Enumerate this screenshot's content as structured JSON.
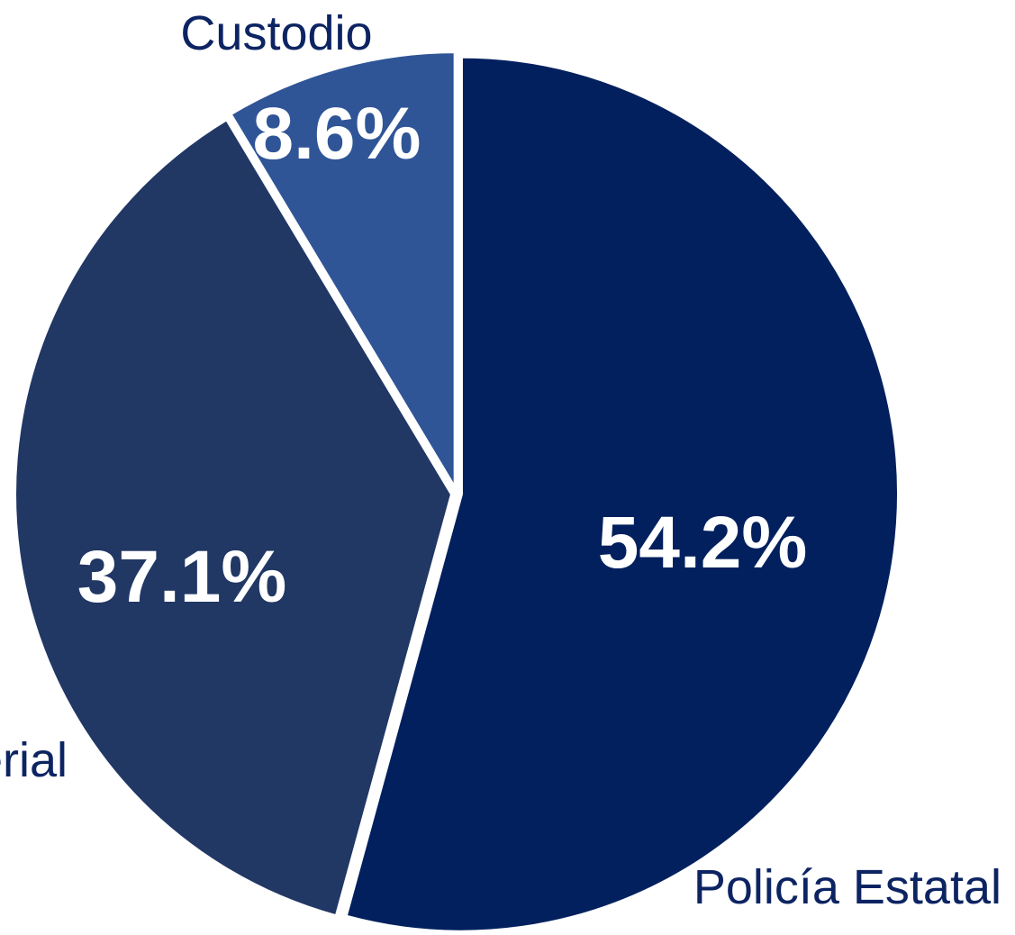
{
  "chart_data": {
    "type": "pie",
    "title": "",
    "start_angle_deg": 0,
    "direction": "clockwise",
    "slices": [
      {
        "label": "Policía Estatal",
        "value": 54.2,
        "value_label": "54.2%",
        "color": "#02205e"
      },
      {
        "label": "Policía Ministerial",
        "value": 37.1,
        "value_label": "37.1%",
        "color": "#213764"
      },
      {
        "label": "Custodio",
        "value": 8.6,
        "value_label": "8.6%",
        "color": "#2f5597"
      }
    ],
    "separator_color": "#ffffff",
    "label_color": "#0d2463",
    "value_label_color": "#ffffff"
  }
}
